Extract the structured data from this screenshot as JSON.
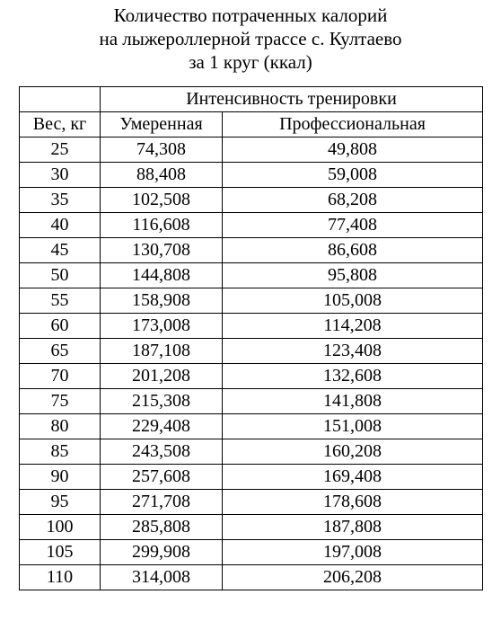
{
  "title": {
    "line1": "Количество потраченных калорий",
    "line2": "на лыжероллерной трассе с. Култаево",
    "line3": "за 1 круг (ккал)"
  },
  "table": {
    "group_header": "Интенсивность тренировки",
    "headers": [
      "Вес, кг",
      "Умеренная",
      "Профессиональная"
    ],
    "rows": [
      [
        "25",
        "74,308",
        "49,808"
      ],
      [
        "30",
        "88,408",
        "59,008"
      ],
      [
        "35",
        "102,508",
        "68,208"
      ],
      [
        "40",
        "116,608",
        "77,408"
      ],
      [
        "45",
        "130,708",
        "86,608"
      ],
      [
        "50",
        "144,808",
        "95,808"
      ],
      [
        "55",
        "158,908",
        "105,008"
      ],
      [
        "60",
        "173,008",
        "114,208"
      ],
      [
        "65",
        "187,108",
        "123,408"
      ],
      [
        "70",
        "201,208",
        "132,608"
      ],
      [
        "75",
        "215,308",
        "141,808"
      ],
      [
        "80",
        "229,408",
        "151,008"
      ],
      [
        "85",
        "243,508",
        "160,208"
      ],
      [
        "90",
        "257,608",
        "169,408"
      ],
      [
        "95",
        "271,708",
        "178,608"
      ],
      [
        "100",
        "285,808",
        "187,808"
      ],
      [
        "105",
        "299,908",
        "197,008"
      ],
      [
        "110",
        "314,008",
        "206,208"
      ]
    ]
  }
}
